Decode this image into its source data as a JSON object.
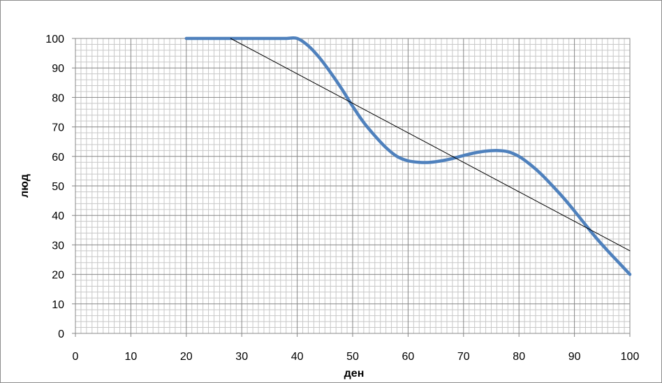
{
  "chart_data": {
    "type": "line",
    "title": "",
    "xlabel": "ден",
    "ylabel": "люд",
    "xlim": [
      0,
      100
    ],
    "ylim": [
      0,
      100
    ],
    "x_ticks": [
      0,
      10,
      20,
      30,
      40,
      50,
      60,
      70,
      80,
      90,
      100
    ],
    "y_ticks": [
      0,
      10,
      20,
      30,
      40,
      50,
      60,
      70,
      80,
      90,
      100
    ],
    "grid": "major and minor",
    "legend": "none",
    "series": [
      {
        "color": "#4f81bd",
        "style": "thick smooth",
        "x": [
          20,
          22,
          24,
          26,
          28,
          30,
          32,
          34,
          36,
          38,
          40,
          42,
          44,
          46,
          48,
          50,
          52,
          54,
          56,
          58,
          60,
          62,
          64,
          66,
          68,
          70,
          72,
          74,
          76,
          78,
          80,
          82,
          84,
          86,
          88,
          90,
          92,
          94,
          96,
          98,
          100
        ],
        "y": [
          100,
          100,
          100,
          100,
          100,
          100,
          100,
          100,
          100,
          100,
          100,
          97.5,
          93.5,
          88.5,
          83,
          77,
          71.5,
          67,
          63,
          60,
          58.5,
          58,
          58,
          58.5,
          59.3,
          60.3,
          61.2,
          61.8,
          62,
          61.6,
          60,
          57.3,
          54,
          50.1,
          46,
          41.5,
          36.8,
          32.2,
          28,
          24,
          20
        ]
      },
      {
        "color": "#000000",
        "style": "thin straight",
        "x": [
          28,
          100
        ],
        "y": [
          100,
          28
        ]
      }
    ]
  }
}
